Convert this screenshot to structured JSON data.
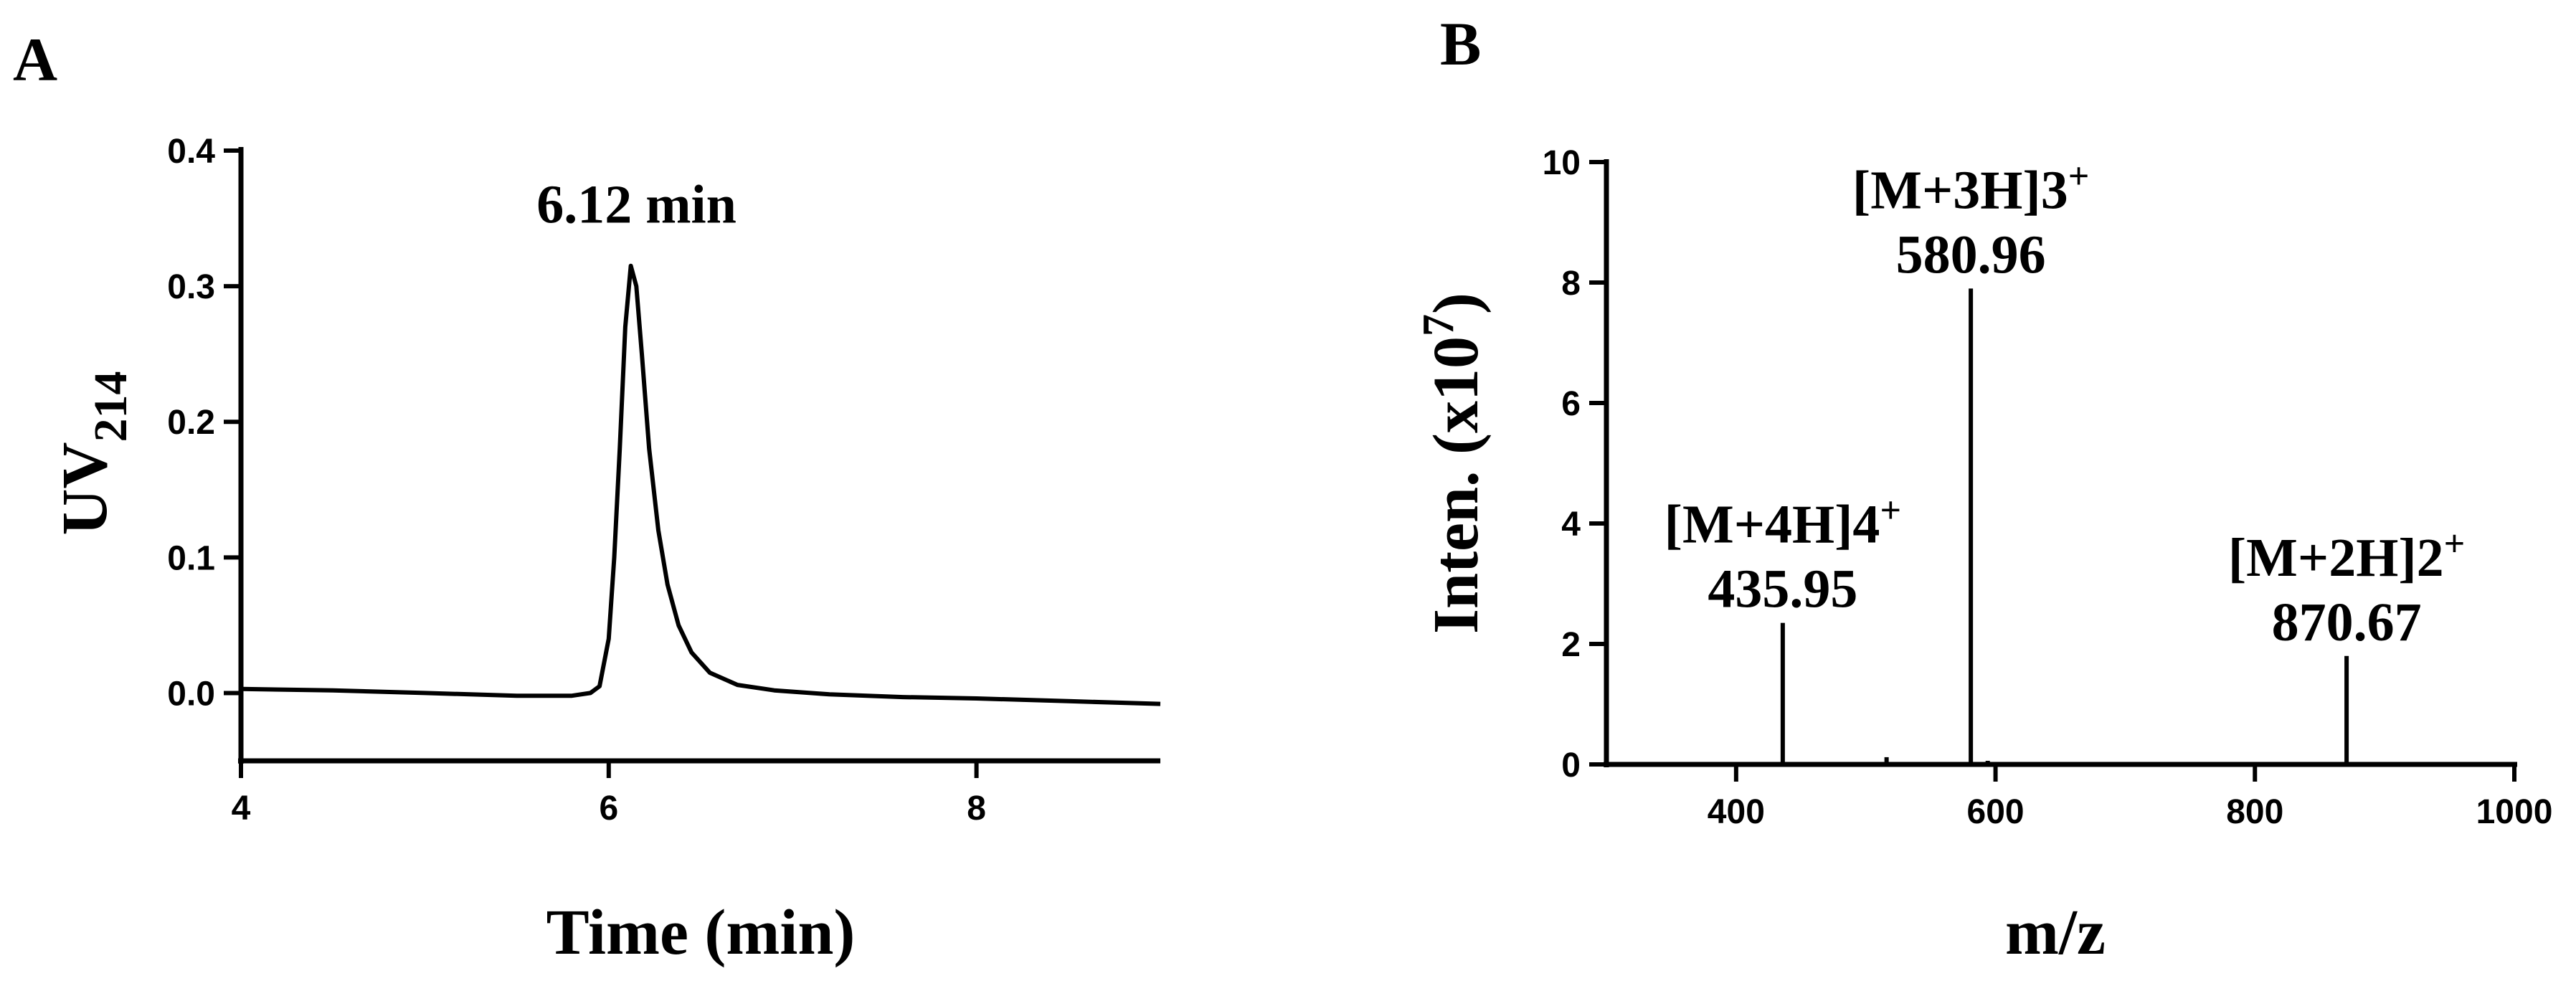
{
  "chart_data": [
    {
      "panel": "A",
      "type": "line",
      "xlabel": "Time (min)",
      "ylabel_main": "UV",
      "ylabel_sub": "214",
      "xlim": [
        4,
        9
      ],
      "ylim": [
        -0.05,
        0.4
      ],
      "xticks": [
        4,
        6,
        8
      ],
      "yticks": [
        0.0,
        0.1,
        0.2,
        0.3,
        0.4
      ],
      "xtick_labels": [
        "4",
        "6",
        "8"
      ],
      "ytick_labels": [
        "0.0",
        "0.1",
        "0.2",
        "0.3",
        "0.4"
      ],
      "series": [
        {
          "x": [
            4.0,
            4.5,
            5.0,
            5.5,
            5.8,
            5.9,
            5.95,
            6.0,
            6.03,
            6.06,
            6.09,
            6.12,
            6.15,
            6.18,
            6.22,
            6.27,
            6.32,
            6.38,
            6.45,
            6.55,
            6.7,
            6.9,
            7.2,
            7.6,
            8.0,
            8.5,
            9.0
          ],
          "y": [
            0.003,
            0.002,
            0.0,
            -0.002,
            -0.002,
            0.0,
            0.005,
            0.04,
            0.1,
            0.18,
            0.27,
            0.315,
            0.3,
            0.25,
            0.18,
            0.12,
            0.08,
            0.05,
            0.03,
            0.015,
            0.006,
            0.002,
            -0.001,
            -0.003,
            -0.004,
            -0.006,
            -0.008
          ]
        }
      ],
      "annotations": [
        {
          "text": "6.12 min",
          "x": 6.12,
          "y": 0.315
        }
      ]
    },
    {
      "panel": "B",
      "type": "bar",
      "xlabel": "m/z",
      "ylabel_main": "Inten. (x10",
      "ylabel_exp": "7",
      "ylabel_end": ")",
      "xlim": [
        300,
        1000
      ],
      "ylim": [
        0,
        10
      ],
      "xticks": [
        400,
        600,
        800,
        1000
      ],
      "yticks": [
        0,
        2,
        4,
        6,
        8,
        10
      ],
      "xtick_labels": [
        "400",
        "600",
        "800",
        "1000"
      ],
      "ytick_labels": [
        "0",
        "2",
        "4",
        "6",
        "8",
        "10"
      ],
      "peaks": [
        {
          "x": 435.95,
          "y": 2.35
        },
        {
          "x": 516.0,
          "y": 0.12
        },
        {
          "x": 580.96,
          "y": 7.9
        },
        {
          "x": 594.0,
          "y": 0.06
        },
        {
          "x": 870.67,
          "y": 1.8
        }
      ],
      "annotations": [
        {
          "ion": "[M+4H]4",
          "charge": "+",
          "mz": "435.95",
          "x": 435.95,
          "y": 2.35
        },
        {
          "ion": "[M+3H]3",
          "charge": "+",
          "mz": "580.96",
          "x": 580.96,
          "y": 7.9
        },
        {
          "ion": "[M+2H]2",
          "charge": "+",
          "mz": "870.67",
          "x": 870.67,
          "y": 1.8
        }
      ]
    }
  ]
}
